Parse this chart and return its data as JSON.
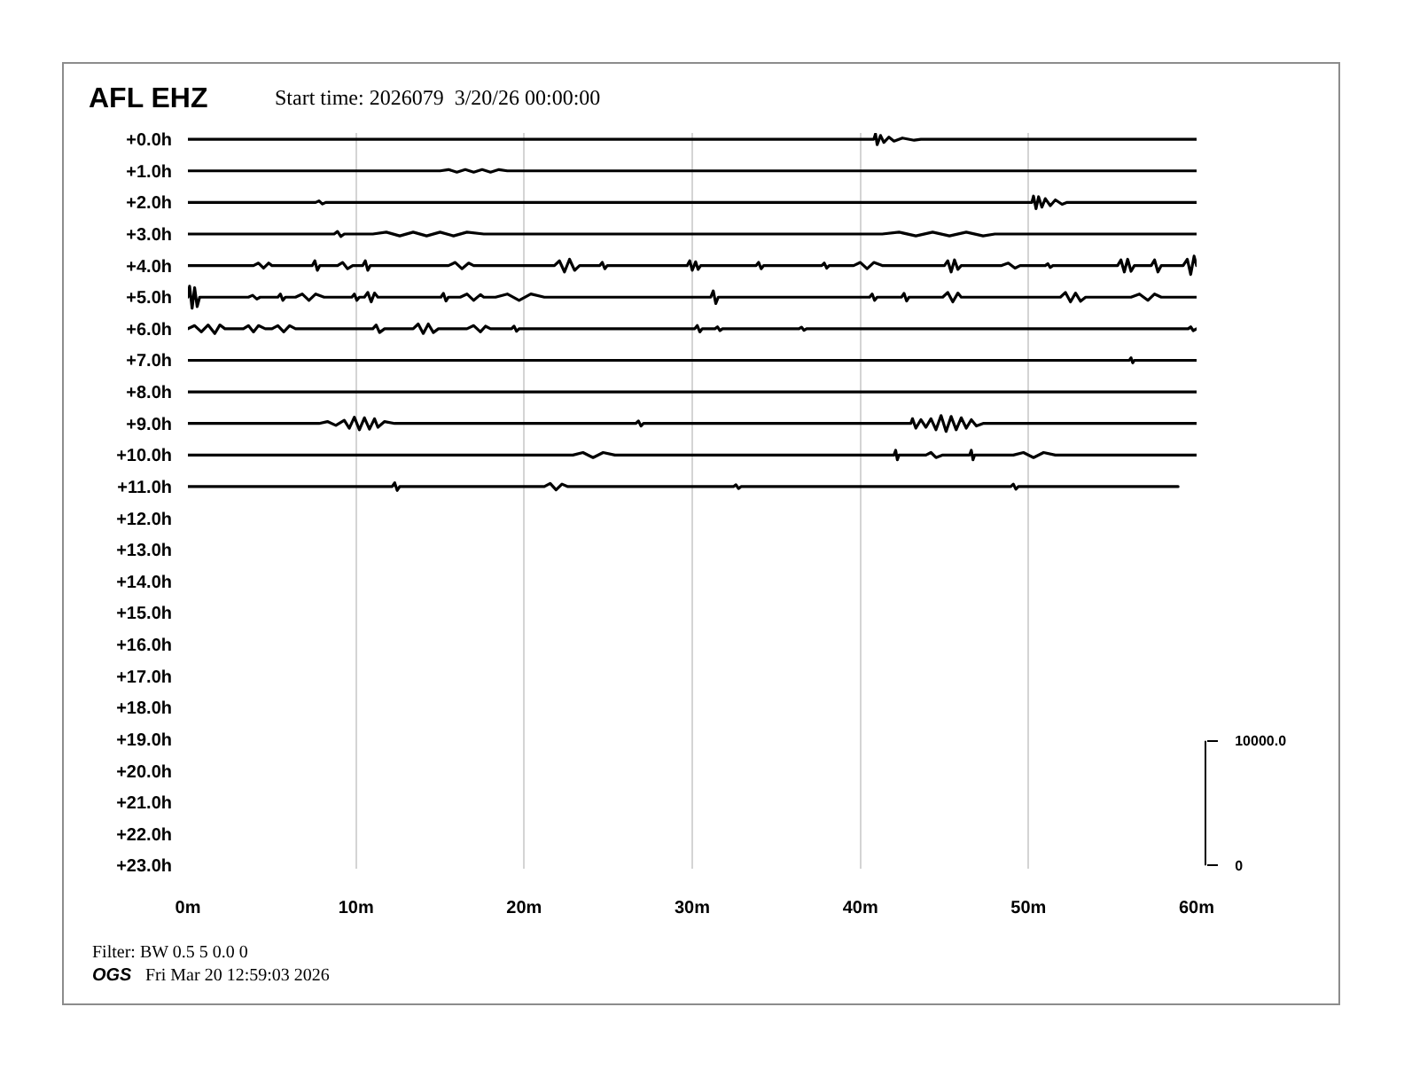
{
  "chart_data": {
    "type": "line",
    "title": "AFL EHZ",
    "subtitle": "Start time: 2026079  3/20/26 00:00:00",
    "annotations": [
      "Filter: BW 0.5 5 0.0 0",
      "OGS",
      "Fri Mar 20 12:59:03 2026"
    ],
    "xlim": [
      0,
      60
    ],
    "xticks": [
      {
        "value": 0,
        "label": "0m"
      },
      {
        "value": 10,
        "label": "10m"
      },
      {
        "value": 20,
        "label": "20m"
      },
      {
        "value": 30,
        "label": "30m"
      },
      {
        "value": 40,
        "label": "40m"
      },
      {
        "value": 50,
        "label": "50m"
      },
      {
        "value": 60,
        "label": "60m"
      }
    ],
    "ylim": [
      23.1,
      -0.2
    ],
    "yticks": [
      {
        "value": 0,
        "label": "+0.0h"
      },
      {
        "value": 1,
        "label": "+1.0h"
      },
      {
        "value": 2,
        "label": "+2.0h"
      },
      {
        "value": 3,
        "label": "+3.0h"
      },
      {
        "value": 4,
        "label": "+4.0h"
      },
      {
        "value": 5,
        "label": "+5.0h"
      },
      {
        "value": 6,
        "label": "+6.0h"
      },
      {
        "value": 7,
        "label": "+7.0h"
      },
      {
        "value": 8,
        "label": "+8.0h"
      },
      {
        "value": 9,
        "label": "+9.0h"
      },
      {
        "value": 10,
        "label": "+10.0h"
      },
      {
        "value": 11,
        "label": "+11.0h"
      },
      {
        "value": 12,
        "label": "+12.0h"
      },
      {
        "value": 13,
        "label": "+13.0h"
      },
      {
        "value": 14,
        "label": "+14.0h"
      },
      {
        "value": 15,
        "label": "+15.0h"
      },
      {
        "value": 16,
        "label": "+16.0h"
      },
      {
        "value": 17,
        "label": "+17.0h"
      },
      {
        "value": 18,
        "label": "+18.0h"
      },
      {
        "value": 19,
        "label": "+19.0h"
      },
      {
        "value": 20,
        "label": "+20.0h"
      },
      {
        "value": 21,
        "label": "+21.0h"
      },
      {
        "value": 22,
        "label": "+22.0h"
      },
      {
        "value": 23,
        "label": "+23.0h"
      }
    ],
    "y2lim": [
      -260,
      58800
    ],
    "y2ticks": [
      {
        "value": 0,
        "label": "0"
      },
      {
        "value": 10000,
        "label": "10000.0"
      }
    ],
    "grid": "x",
    "line_style": "solid",
    "series": [
      {
        "color": "#000000",
        "x": [
          0,
          40.8,
          40.9,
          41.0,
          41.2,
          41.4,
          41.7,
          42.0,
          42.5,
          43.2,
          43.6,
          60
        ],
        "values": [
          0,
          0,
          -0.17,
          0.17,
          -0.12,
          0.1,
          -0.07,
          0.06,
          -0.04,
          0.03,
          0,
          0
        ]
      },
      {
        "color": "#000000",
        "x": [
          0,
          15,
          15.5,
          16,
          16.5,
          17,
          17.5,
          18,
          18.5,
          19,
          60
        ],
        "values": [
          1,
          1,
          0.96,
          1.04,
          0.96,
          1.04,
          0.96,
          1.04,
          0.96,
          1,
          1
        ]
      },
      {
        "color": "#000000",
        "x": [
          0,
          7.6,
          7.8,
          8.0,
          8.2,
          50.2,
          50.3,
          50.45,
          50.6,
          50.8,
          51.0,
          51.3,
          51.6,
          52.0,
          52.3,
          60
        ],
        "values": [
          2,
          2,
          1.95,
          2.05,
          2,
          2,
          1.8,
          2.2,
          1.82,
          2.15,
          1.88,
          2.1,
          1.92,
          2.06,
          2,
          2
        ]
      },
      {
        "color": "#000000",
        "x": [
          0,
          8.7,
          8.9,
          9.1,
          9.3,
          11,
          11.8,
          12.6,
          13.4,
          14.2,
          15,
          15.8,
          16.6,
          17.6,
          41.3,
          42.3,
          43.3,
          44.3,
          45.3,
          46.3,
          47.3,
          48,
          60
        ],
        "values": [
          3,
          3,
          2.92,
          3.08,
          3,
          3,
          2.94,
          3.06,
          2.94,
          3.06,
          2.94,
          3.06,
          2.94,
          3,
          3,
          2.94,
          3.06,
          2.94,
          3.06,
          2.94,
          3.06,
          3,
          3
        ]
      },
      {
        "color": "#000000",
        "x": [
          0,
          3.9,
          4.2,
          4.5,
          4.8,
          5,
          7.4,
          7.55,
          7.7,
          7.85,
          8.9,
          9.2,
          9.5,
          9.8,
          10.4,
          10.55,
          10.7,
          10.85,
          15.5,
          15.9,
          16.3,
          16.7,
          17,
          21.8,
          22.1,
          22.4,
          22.7,
          23,
          23.3,
          24.5,
          24.65,
          24.8,
          24.95,
          29.7,
          29.85,
          30,
          30.2,
          30.35,
          30.5,
          33.8,
          33.95,
          34.1,
          34.25,
          37.7,
          37.85,
          38,
          38.15,
          39.6,
          40,
          40.4,
          40.8,
          41.3,
          45,
          45.2,
          45.4,
          45.6,
          45.8,
          46,
          48.4,
          48.8,
          49.2,
          49.5,
          51,
          51.15,
          51.3,
          51.45,
          55.3,
          55.5,
          55.7,
          55.9,
          56.1,
          56.3,
          57.3,
          57.5,
          57.7,
          57.9,
          59.2,
          59.45,
          59.65,
          59.85,
          60
        ],
        "values": [
          4,
          4,
          3.92,
          4.08,
          3.92,
          4,
          4,
          3.85,
          4.15,
          4,
          4,
          3.9,
          4.1,
          4,
          4,
          3.85,
          4.15,
          4,
          4,
          3.9,
          4.1,
          3.92,
          4,
          4,
          3.85,
          4.2,
          3.8,
          4.15,
          4,
          4,
          3.9,
          4.1,
          4,
          4,
          3.85,
          4.15,
          3.88,
          4.12,
          4,
          4,
          3.9,
          4.1,
          4,
          4,
          3.92,
          4.08,
          4,
          4,
          3.9,
          4.1,
          3.9,
          4,
          4,
          3.85,
          4.2,
          3.82,
          4.12,
          4,
          4,
          3.92,
          4.08,
          4,
          4,
          3.94,
          4.06,
          4,
          4,
          3.82,
          4.2,
          3.8,
          4.18,
          4,
          4,
          3.82,
          4.2,
          4,
          4,
          3.8,
          4.28,
          3.7,
          4
        ]
      },
      {
        "color": "#000000",
        "x": [
          0,
          0.1,
          0.25,
          0.4,
          0.55,
          0.7,
          3.6,
          3.85,
          4.1,
          4.3,
          5.35,
          5.5,
          5.65,
          5.8,
          6.4,
          6.8,
          7.2,
          7.6,
          8.1,
          9.75,
          9.9,
          10.05,
          10.2,
          10.5,
          10.7,
          10.9,
          11.1,
          11.3,
          15.05,
          15.2,
          15.35,
          15.5,
          16.2,
          16.6,
          17,
          17.4,
          17.6,
          18.3,
          19,
          19.7,
          20.4,
          21.2,
          31.1,
          31.25,
          31.4,
          31.55,
          40.55,
          40.7,
          40.85,
          41,
          42.45,
          42.6,
          42.75,
          42.9,
          44.9,
          45.2,
          45.5,
          45.8,
          46,
          51.9,
          52.2,
          52.5,
          52.8,
          53.1,
          53.4,
          56.1,
          56.6,
          57.1,
          57.5,
          57.9,
          60
        ],
        "values": [
          5,
          4.65,
          5.35,
          4.7,
          5.3,
          5,
          5,
          4.94,
          5.06,
          5,
          5,
          4.9,
          5.1,
          5,
          5,
          4.9,
          5.1,
          4.9,
          5,
          5,
          4.9,
          5.1,
          5,
          5,
          4.85,
          5.15,
          4.87,
          5,
          5,
          4.88,
          5.12,
          5,
          5,
          4.9,
          5.1,
          4.92,
          5,
          5,
          4.9,
          5.1,
          4.9,
          5,
          5,
          4.8,
          5.2,
          5,
          5,
          4.9,
          5.1,
          5,
          5,
          4.88,
          5.12,
          5,
          5,
          4.85,
          5.15,
          4.87,
          5,
          5,
          4.85,
          5.15,
          4.87,
          5.13,
          5,
          5,
          4.9,
          5.1,
          4.9,
          5,
          5
        ]
      },
      {
        "color": "#000000",
        "x": [
          0,
          0.4,
          0.8,
          1.2,
          1.6,
          1.9,
          2.2,
          3.3,
          3.6,
          3.9,
          4.2,
          4.6,
          5,
          5.35,
          5.7,
          6.05,
          6.4,
          11,
          11.2,
          11.4,
          11.7,
          13.4,
          13.7,
          14,
          14.3,
          14.6,
          14.9,
          16.6,
          17,
          17.4,
          17.7,
          18,
          19.25,
          19.4,
          19.55,
          19.7,
          30.15,
          30.3,
          30.45,
          30.6,
          31.35,
          31.5,
          31.65,
          31.8,
          36.35,
          36.5,
          36.65,
          36.8,
          59.5,
          59.65,
          59.8,
          60
        ],
        "values": [
          6,
          5.9,
          6.1,
          5.88,
          6.15,
          5.88,
          6,
          6,
          5.9,
          6.1,
          5.9,
          6,
          6,
          5.9,
          6.1,
          5.9,
          6,
          6,
          5.88,
          6.12,
          6,
          6,
          5.85,
          6.15,
          5.85,
          6.12,
          6,
          6,
          5.9,
          6.1,
          5.92,
          6,
          6,
          5.92,
          6.08,
          6,
          6,
          5.9,
          6.1,
          6,
          6,
          5.94,
          6.06,
          6,
          6,
          5.95,
          6.05,
          6,
          6,
          5.94,
          6.06,
          6
        ]
      },
      {
        "color": "#000000",
        "x": [
          0,
          56,
          56.1,
          56.2,
          56.3,
          60
        ],
        "values": [
          7,
          7,
          6.92,
          7.08,
          7,
          7
        ]
      },
      {
        "color": "#000000",
        "x": [
          0,
          60
        ],
        "values": [
          8,
          8
        ]
      },
      {
        "color": "#000000",
        "x": [
          0,
          7.8,
          8.3,
          8.8,
          9.3,
          9.6,
          9.9,
          10.2,
          10.5,
          10.8,
          11.1,
          11.3,
          11.7,
          12.3,
          26.65,
          26.8,
          26.95,
          27.1,
          43,
          43.1,
          43.3,
          43.6,
          43.9,
          44.2,
          44.5,
          44.8,
          45.1,
          45.4,
          45.7,
          46,
          46.3,
          46.6,
          46.9,
          47.3,
          60
        ],
        "values": [
          9,
          9,
          8.94,
          9.06,
          8.9,
          9.15,
          8.8,
          9.2,
          8.82,
          9.18,
          8.85,
          9.12,
          8.94,
          9,
          9,
          8.92,
          9.08,
          9,
          9,
          8.85,
          9.15,
          8.88,
          9.12,
          8.85,
          9.2,
          8.75,
          9.25,
          8.78,
          9.2,
          8.82,
          9.15,
          8.88,
          9.08,
          9,
          9
        ]
      },
      {
        "color": "#000000",
        "x": [
          0,
          22.9,
          23.5,
          24.1,
          24.7,
          25.4,
          42,
          42.1,
          42.2,
          42.3,
          43.9,
          44.2,
          44.5,
          44.9,
          46.5,
          46.6,
          46.7,
          46.8,
          49.1,
          49.7,
          50.3,
          50.9,
          51.6,
          60
        ],
        "values": [
          10,
          10,
          9.92,
          10.08,
          9.92,
          10,
          10,
          9.85,
          10.15,
          10,
          10,
          9.92,
          10.08,
          10,
          10,
          9.85,
          10.15,
          10,
          10,
          9.92,
          10.08,
          9.92,
          10,
          10
        ]
      },
      {
        "color": "#000000",
        "x": [
          0,
          12.15,
          12.3,
          12.45,
          12.6,
          21.2,
          21.55,
          21.9,
          22.25,
          22.6,
          32.45,
          32.6,
          32.75,
          32.9,
          48.95,
          49.1,
          49.25,
          49.4,
          58.9
        ],
        "values": [
          11,
          11,
          10.88,
          11.12,
          11,
          11,
          10.9,
          11.1,
          10.92,
          11,
          11,
          10.94,
          11.06,
          11,
          11,
          10.92,
          11.08,
          11,
          11
        ]
      }
    ]
  }
}
